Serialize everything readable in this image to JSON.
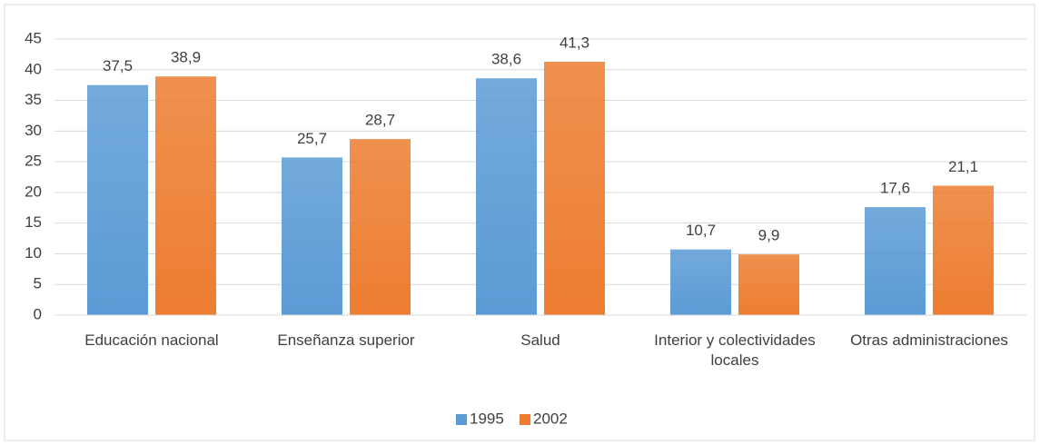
{
  "chart_data": {
    "type": "bar",
    "categories": [
      "Educación nacional",
      "Enseñanza superior",
      "Salud",
      "Interior y colectividades locales",
      "Otras administraciones"
    ],
    "series": [
      {
        "name": "1995",
        "color": "#5b9bd5",
        "values": [
          37.5,
          25.7,
          38.6,
          10.7,
          17.6
        ],
        "value_labels": [
          "37,5",
          "25,7",
          "38,6",
          "10,7",
          "17,6"
        ]
      },
      {
        "name": "2002",
        "color": "#ed7d31",
        "values": [
          38.9,
          28.7,
          41.3,
          9.9,
          21.1
        ],
        "value_labels": [
          "38,9",
          "28,7",
          "41,3",
          "9,9",
          "21,1"
        ]
      }
    ],
    "ylim": [
      0,
      45
    ],
    "yticks": [
      0,
      5,
      10,
      15,
      20,
      25,
      30,
      35,
      40,
      45
    ],
    "grid": true,
    "legend": "bottom"
  }
}
